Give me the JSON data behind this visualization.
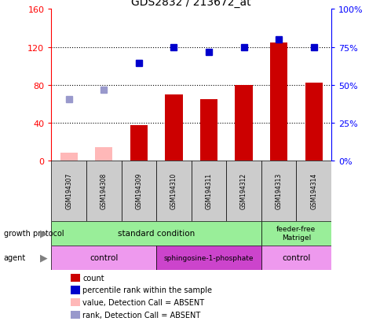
{
  "title": "GDS2832 / 213672_at",
  "samples": [
    "GSM194307",
    "GSM194308",
    "GSM194309",
    "GSM194310",
    "GSM194311",
    "GSM194312",
    "GSM194313",
    "GSM194314"
  ],
  "count_values": [
    8,
    14,
    37,
    70,
    65,
    80,
    125,
    82
  ],
  "count_absent": [
    true,
    true,
    false,
    false,
    false,
    false,
    false,
    false
  ],
  "rank_values_left": [
    65,
    75,
    103,
    120,
    115,
    120,
    128,
    120
  ],
  "rank_absent": [
    true,
    true,
    false,
    false,
    false,
    false,
    false,
    false
  ],
  "left_ylim": [
    0,
    160
  ],
  "right_ylim": [
    0,
    100
  ],
  "left_yticks": [
    0,
    40,
    80,
    120,
    160
  ],
  "right_yticks": [
    0,
    25,
    50,
    75,
    100
  ],
  "right_yticklabels": [
    "0%",
    "25%",
    "50%",
    "75%",
    "100%"
  ],
  "color_count_present": "#cc0000",
  "color_count_absent": "#ffb8b8",
  "color_rank_present": "#0000cc",
  "color_rank_absent": "#9999cc",
  "bar_width": 0.5,
  "marker_size": 6,
  "sample_box_color": "#cccccc",
  "growth_protocol_standard_color": "#99ee99",
  "growth_protocol_feeder_color": "#99ee99",
  "agent_control_color": "#ee99ee",
  "agent_sphingo_color": "#cc44cc",
  "legend_colors": [
    "#cc0000",
    "#0000cc",
    "#ffb8b8",
    "#9999cc"
  ],
  "legend_labels": [
    "count",
    "percentile rank within the sample",
    "value, Detection Call = ABSENT",
    "rank, Detection Call = ABSENT"
  ]
}
